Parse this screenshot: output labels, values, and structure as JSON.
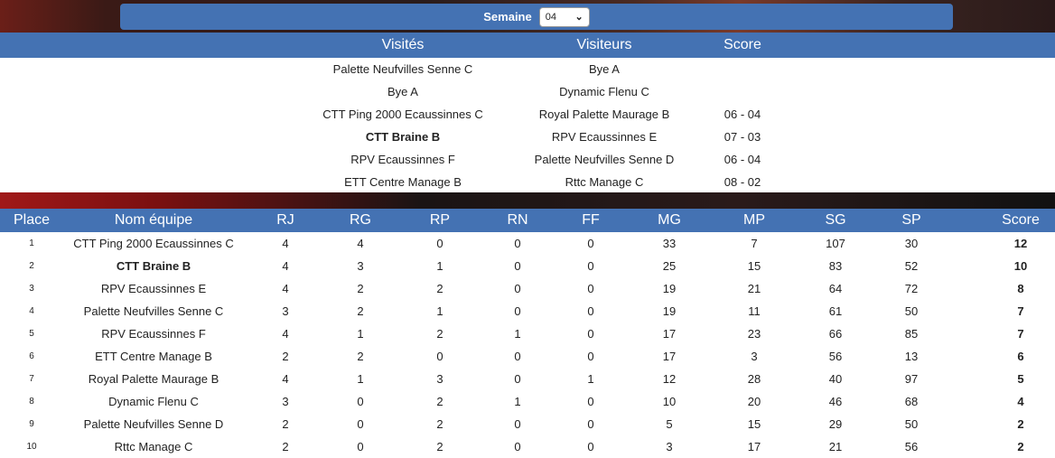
{
  "week": {
    "label": "Semaine",
    "selected": "04"
  },
  "matches": {
    "headers": {
      "home": "Visités",
      "away": "Visiteurs",
      "score": "Score"
    },
    "rows": [
      {
        "home": "Palette Neufvilles Senne C",
        "away": "Bye A",
        "score": "",
        "bold": false
      },
      {
        "home": "Bye A",
        "away": "Dynamic Flenu C",
        "score": "",
        "bold": false
      },
      {
        "home": "CTT Ping 2000 Ecaussinnes C",
        "away": "Royal Palette Maurage B",
        "score": "06 - 04",
        "bold": false
      },
      {
        "home": "CTT Braine B",
        "away": "RPV Ecaussinnes E",
        "score": "07 - 03",
        "bold": true
      },
      {
        "home": "RPV Ecaussinnes F",
        "away": "Palette Neufvilles Senne D",
        "score": "06 - 04",
        "bold": false
      },
      {
        "home": "ETT Centre Manage B",
        "away": "Rttc Manage C",
        "score": "08 - 02",
        "bold": false
      }
    ]
  },
  "standings": {
    "headers": [
      "Place",
      "Nom équipe",
      "RJ",
      "RG",
      "RP",
      "RN",
      "FF",
      "MG",
      "MP",
      "SG",
      "SP",
      "Score"
    ],
    "rows": [
      {
        "place": "1",
        "team": "CTT Ping 2000 Ecaussinnes C",
        "rj": "4",
        "rg": "4",
        "rp": "0",
        "rn": "0",
        "ff": "0",
        "mg": "33",
        "mp": "7",
        "sg": "107",
        "sp": "30",
        "score": "12",
        "bold": false
      },
      {
        "place": "2",
        "team": "CTT Braine B",
        "rj": "4",
        "rg": "3",
        "rp": "1",
        "rn": "0",
        "ff": "0",
        "mg": "25",
        "mp": "15",
        "sg": "83",
        "sp": "52",
        "score": "10",
        "bold": true
      },
      {
        "place": "3",
        "team": "RPV Ecaussinnes E",
        "rj": "4",
        "rg": "2",
        "rp": "2",
        "rn": "0",
        "ff": "0",
        "mg": "19",
        "mp": "21",
        "sg": "64",
        "sp": "72",
        "score": "8",
        "bold": false
      },
      {
        "place": "4",
        "team": "Palette Neufvilles Senne C",
        "rj": "3",
        "rg": "2",
        "rp": "1",
        "rn": "0",
        "ff": "0",
        "mg": "19",
        "mp": "11",
        "sg": "61",
        "sp": "50",
        "score": "7",
        "bold": false
      },
      {
        "place": "5",
        "team": "RPV Ecaussinnes F",
        "rj": "4",
        "rg": "1",
        "rp": "2",
        "rn": "1",
        "ff": "0",
        "mg": "17",
        "mp": "23",
        "sg": "66",
        "sp": "85",
        "score": "7",
        "bold": false
      },
      {
        "place": "6",
        "team": "ETT Centre Manage B",
        "rj": "2",
        "rg": "2",
        "rp": "0",
        "rn": "0",
        "ff": "0",
        "mg": "17",
        "mp": "3",
        "sg": "56",
        "sp": "13",
        "score": "6",
        "bold": false
      },
      {
        "place": "7",
        "team": "Royal Palette Maurage B",
        "rj": "4",
        "rg": "1",
        "rp": "3",
        "rn": "0",
        "ff": "1",
        "mg": "12",
        "mp": "28",
        "sg": "40",
        "sp": "97",
        "score": "5",
        "bold": false
      },
      {
        "place": "8",
        "team": "Dynamic Flenu C",
        "rj": "3",
        "rg": "0",
        "rp": "2",
        "rn": "1",
        "ff": "0",
        "mg": "10",
        "mp": "20",
        "sg": "46",
        "sp": "68",
        "score": "4",
        "bold": false
      },
      {
        "place": "9",
        "team": "Palette Neufvilles Senne D",
        "rj": "2",
        "rg": "0",
        "rp": "2",
        "rn": "0",
        "ff": "0",
        "mg": "5",
        "mp": "15",
        "sg": "29",
        "sp": "50",
        "score": "2",
        "bold": false
      },
      {
        "place": "10",
        "team": "Rttc Manage C",
        "rj": "2",
        "rg": "0",
        "rp": "2",
        "rn": "0",
        "ff": "0",
        "mg": "3",
        "mp": "17",
        "sg": "21",
        "sp": "56",
        "score": "2",
        "bold": false
      }
    ]
  },
  "colors": {
    "header_blue": "#4472b3"
  }
}
